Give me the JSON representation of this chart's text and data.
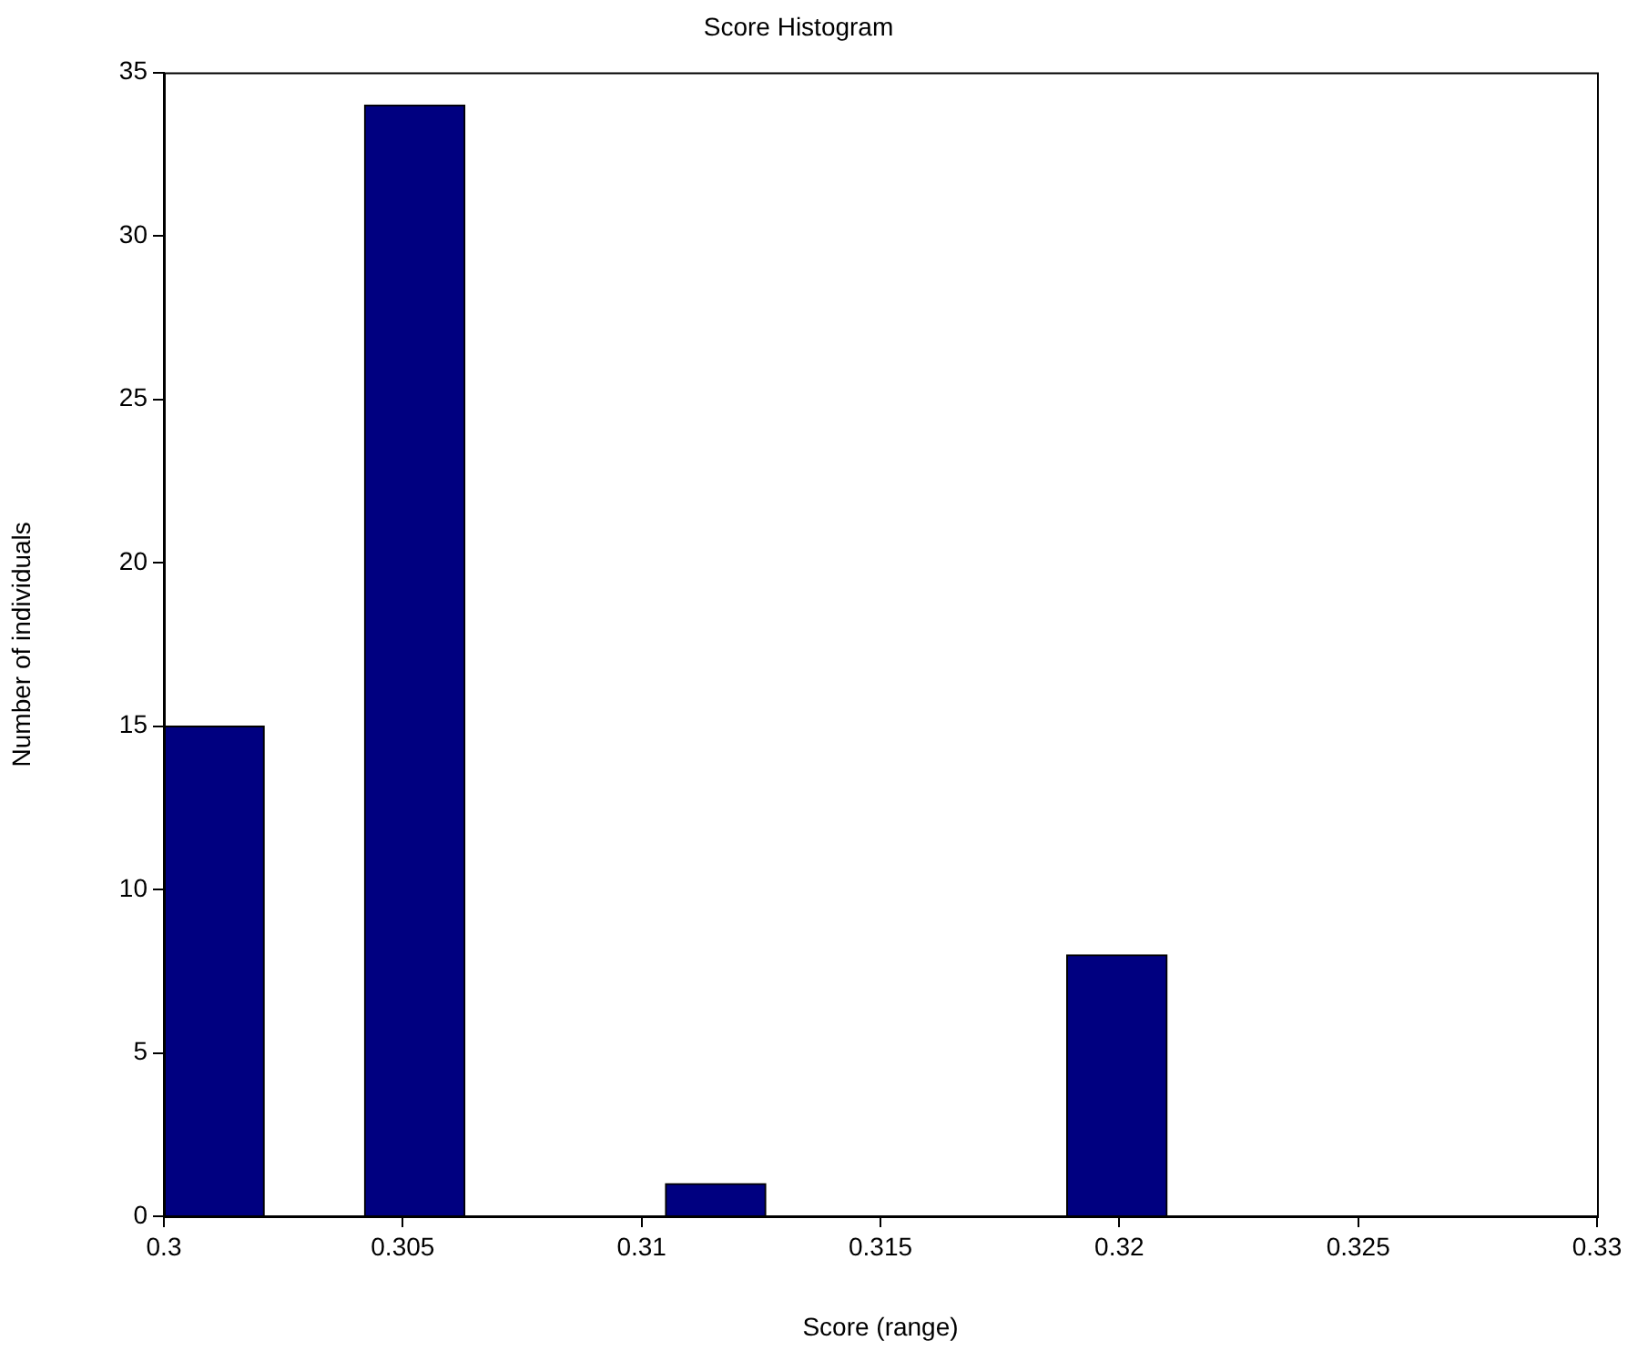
{
  "chart_data": {
    "type": "histogram",
    "title": "Score Histogram",
    "xlabel": "Score (range)",
    "ylabel": "Number of individuals",
    "bins": [
      0.3,
      0.3021,
      0.3042,
      0.3063,
      0.3084,
      0.3105,
      0.3126,
      0.3147,
      0.3168,
      0.3189,
      0.321
    ],
    "values": [
      15,
      0,
      34,
      0,
      0,
      1,
      0,
      0,
      0,
      8
    ],
    "color": "#000080",
    "xlim": [
      0.3,
      0.33
    ],
    "xticks": [
      0.3,
      0.305,
      0.31,
      0.315,
      0.32,
      0.325,
      0.33
    ],
    "ylim": [
      0,
      35
    ],
    "yticks": [
      0,
      5,
      10,
      15,
      20,
      25,
      30,
      35
    ],
    "grid": false,
    "legend": false
  }
}
